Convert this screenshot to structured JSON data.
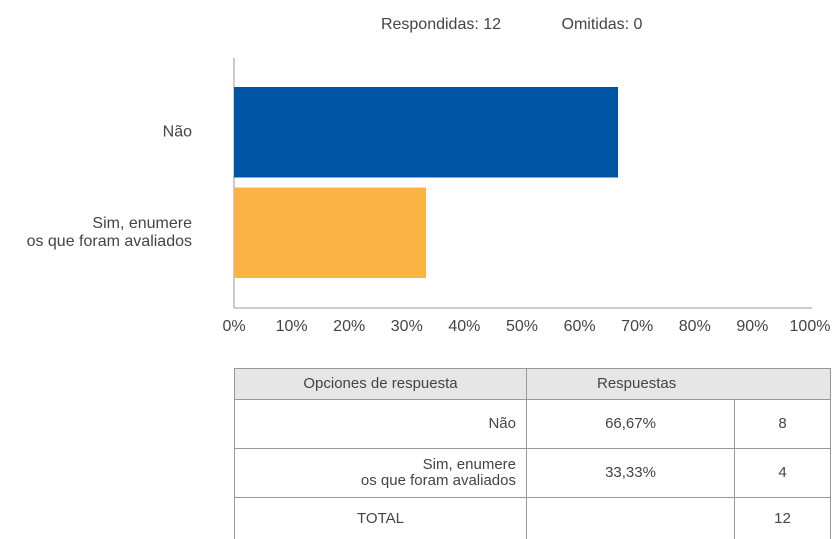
{
  "summary": {
    "answered": "Respondidas: 12",
    "skipped": "Omitidas: 0"
  },
  "chart_data": {
    "type": "bar",
    "orientation": "horizontal",
    "categories": [
      "Não",
      "Sim, enumere\nos que foram avaliados"
    ],
    "values": [
      66.67,
      33.33
    ],
    "colors": [
      "#0054a4",
      "#fbb344"
    ],
    "xlim": [
      0,
      100
    ],
    "xticks": [
      {
        "value": 0,
        "label": "0%"
      },
      {
        "value": 10,
        "label": "10%"
      },
      {
        "value": 20,
        "label": "20%"
      },
      {
        "value": 30,
        "label": "30%"
      },
      {
        "value": 40,
        "label": "40%"
      },
      {
        "value": 50,
        "label": "50%"
      },
      {
        "value": 60,
        "label": "60%"
      },
      {
        "value": 70,
        "label": "70%"
      },
      {
        "value": 80,
        "label": "80%"
      },
      {
        "value": 90,
        "label": "90%"
      },
      {
        "value": 100,
        "label": "100%"
      }
    ],
    "grid": false
  },
  "table": {
    "header": [
      "Opciones de respuesta",
      "Respuestas"
    ],
    "rows": [
      [
        "Não",
        "66,67%",
        "8"
      ],
      [
        "Sim, enumere\nos que foram avaliados",
        "33,33%",
        "4"
      ]
    ],
    "total": {
      "label": "TOTAL",
      "count": "12"
    }
  }
}
